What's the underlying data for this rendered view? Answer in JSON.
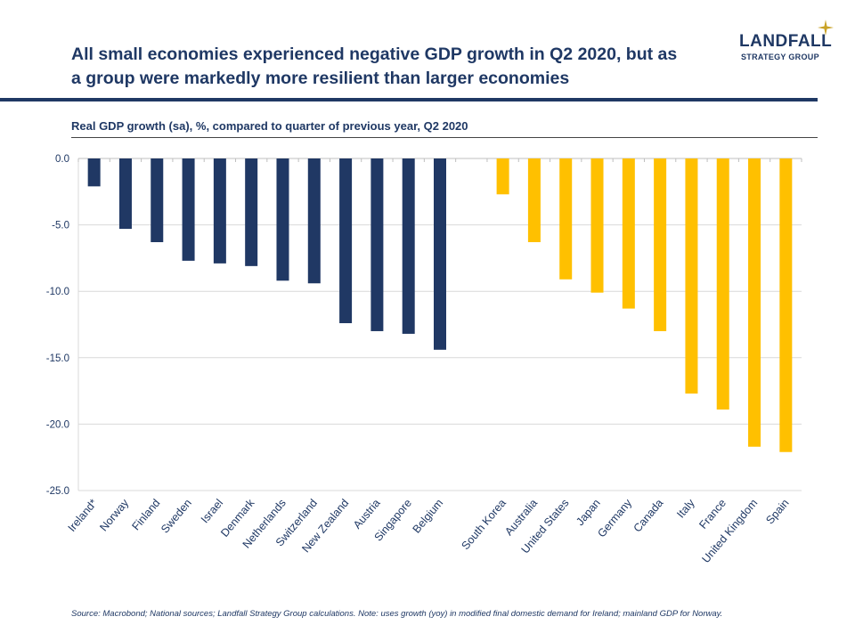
{
  "header": {
    "title_line1": "All small economies experienced negative GDP growth in Q2 2020, but as",
    "title_line2": "a group were markedly more resilient than larger economies",
    "logo_main": "LANDFALL",
    "logo_sub": "STRATEGY GROUP"
  },
  "footer": {
    "source": "Source: Macrobond;  National sources; Landfall Strategy Group calculations. Note: uses growth (yoy) in modified final domestic demand for Ireland; mainland GDP for Norway."
  },
  "colors": {
    "small_economies": "#203864",
    "large_economies": "#ffc000",
    "title": "#1f3864",
    "grid": "#d9d9d9"
  },
  "chart_data": {
    "type": "bar",
    "title": "Real GDP growth (sa), %, compared to quarter of previous year, Q2 2020",
    "xlabel": "",
    "ylabel": "",
    "ylim": [
      -25,
      0
    ],
    "yticks": [
      0,
      -5,
      -10,
      -15,
      -20,
      -25
    ],
    "ytick_labels": [
      "0.0",
      "-5.0",
      "-10.0",
      "-15.0",
      "-20.0",
      "-25.0"
    ],
    "grid": true,
    "legend": "none",
    "series": [
      {
        "group": "small",
        "categories": [
          "Ireland*",
          "Norway",
          "Finland",
          "Sweden",
          "Israel",
          "Denmark",
          "Netherlands",
          "Switzerland",
          "New Zealand",
          "Austria",
          "Singapore",
          "Belgium"
        ],
        "values": [
          -2.1,
          -5.3,
          -6.3,
          -7.7,
          -7.9,
          -8.1,
          -9.2,
          -9.4,
          -12.4,
          -13.0,
          -13.2,
          -14.4
        ]
      },
      {
        "group": "large",
        "categories": [
          "South Korea",
          "Australia",
          "United States",
          "Japan",
          "Germany",
          "Canada",
          "Italy",
          "France",
          "United Kingdom",
          "Spain"
        ],
        "values": [
          -2.7,
          -6.3,
          -9.1,
          -10.1,
          -11.3,
          -13.0,
          -17.7,
          -18.9,
          -21.7,
          -22.1
        ]
      }
    ]
  }
}
